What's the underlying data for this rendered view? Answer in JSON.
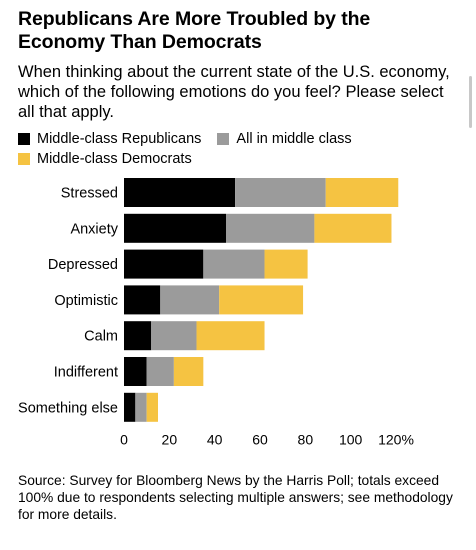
{
  "title": "Republicans Are More Troubled by the Economy Than Democrats",
  "subtitle": "When thinking about the current state of the U.S. economy, which of the following emotions do you feel? Please select all that apply.",
  "legend": {
    "republicans": "Middle-class Republicans",
    "all": "All in middle class",
    "democrats": "Middle-class Democrats"
  },
  "colors": {
    "republicans": "#000000",
    "all": "#9b9b9b",
    "democrats": "#f5c342"
  },
  "source": "Source: Survey for Bloomberg News by the Harris Poll; totals exceed 100% due to respondents selecting multiple answers; see methodology for more details.",
  "chart_data": {
    "type": "bar",
    "orientation": "horizontal",
    "stacked": true,
    "categories": [
      "Stressed",
      "Anxiety",
      "Depressed",
      "Optimistic",
      "Calm",
      "Indifferent",
      "Something else"
    ],
    "series": [
      {
        "name": "Middle-class Republicans",
        "values": [
          49,
          45,
          35,
          16,
          12,
          10,
          5
        ]
      },
      {
        "name": "All in middle class",
        "values": [
          40,
          39,
          27,
          26,
          20,
          12,
          5
        ]
      },
      {
        "name": "Middle-class Democrats",
        "values": [
          32,
          34,
          19,
          37,
          30,
          13,
          5
        ]
      }
    ],
    "xlim": [
      0,
      120
    ],
    "xticks": [
      0,
      20,
      40,
      60,
      80,
      100,
      120
    ],
    "xtick_labels": [
      "0",
      "20",
      "40",
      "60",
      "80",
      "100",
      "120%"
    ],
    "grid": false,
    "legend_position": "top-left"
  }
}
